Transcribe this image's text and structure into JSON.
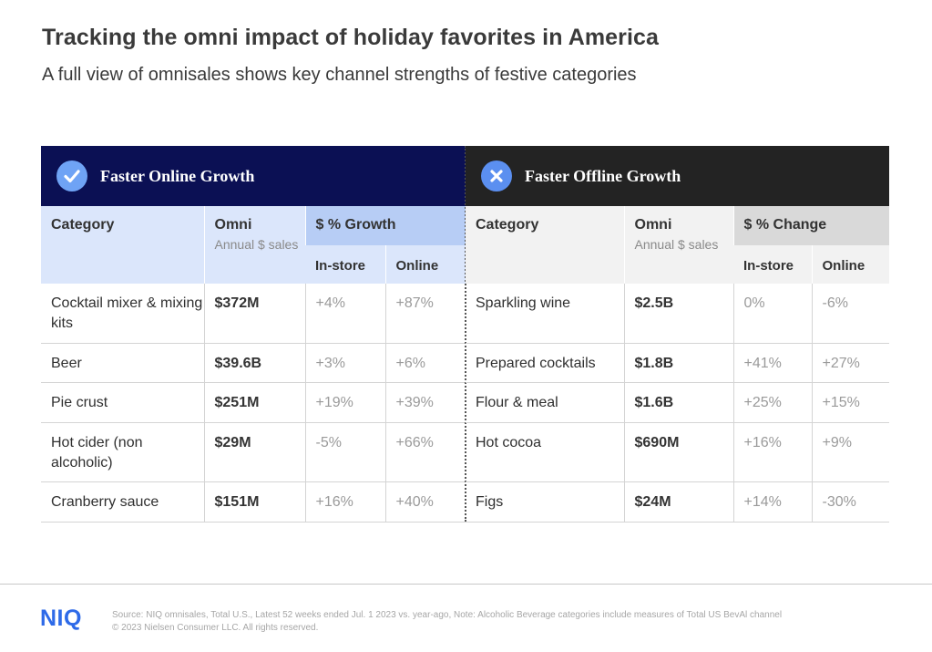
{
  "header": {
    "title": "Tracking the omni impact of holiday favorites in America",
    "subtitle": "A full view of omnisales shows key channel strengths of festive categories"
  },
  "online_panel": {
    "banner": "Faster Online Growth",
    "icon": "check-icon",
    "headers": {
      "category": "Category",
      "omni": "Omni",
      "omni_sub": "Annual $ sales",
      "growth": "$ % Growth",
      "instore": "In-store",
      "online": "Online"
    },
    "rows": [
      {
        "category": "Cocktail mixer & mixing kits",
        "omni": "$372M",
        "instore": "+4%",
        "online": "+87%"
      },
      {
        "category": "Beer",
        "omni": "$39.6B",
        "instore": "+3%",
        "online": "+6%"
      },
      {
        "category": "Pie crust",
        "omni": "$251M",
        "instore": "+19%",
        "online": "+39%"
      },
      {
        "category": "Hot cider (non alcoholic)",
        "omni": "$29M",
        "instore": "-5%",
        "online": "+66%"
      },
      {
        "category": "Cranberry sauce",
        "omni": "$151M",
        "instore": "+16%",
        "online": "+40%"
      }
    ]
  },
  "offline_panel": {
    "banner": "Faster Offline Growth",
    "icon": "cross-icon",
    "headers": {
      "category": "Category",
      "omni": "Omni",
      "omni_sub": "Annual $ sales",
      "change": "$ % Change",
      "instore": "In-store",
      "online": "Online"
    },
    "rows": [
      {
        "category": "Sparkling wine",
        "omni": "$2.5B",
        "instore": "0%",
        "online": "-6%"
      },
      {
        "category": "Prepared cocktails",
        "omni": "$1.8B",
        "instore": "+41%",
        "online": "+27%"
      },
      {
        "category": "Flour & meal",
        "omni": "$1.6B",
        "instore": "+25%",
        "online": "+15%"
      },
      {
        "category": "Hot cocoa",
        "omni": "$690M",
        "instore": "+16%",
        "online": "+9%"
      },
      {
        "category": "Figs",
        "omni": "$24M",
        "instore": "+14%",
        "online": "-30%"
      }
    ]
  },
  "footer": {
    "logo": "NIQ",
    "source_line1": "Source: NIQ omnisales, Total U.S., Latest 52 weeks ended Jul. 1 2023 vs. year-ago, Note: Alcoholic Beverage categories include measures of Total US BevAl channel",
    "source_line2": "© 2023 Nielsen Consumer LLC. All rights reserved."
  },
  "colors": {
    "online_banner": "#0b1054",
    "offline_banner": "#232323",
    "online_header": "#dbe6fb",
    "online_header_accent": "#b7cdf5",
    "offline_header": "#f2f2f2",
    "offline_header_accent": "#d9d9d9",
    "brand": "#2e6ae8"
  }
}
